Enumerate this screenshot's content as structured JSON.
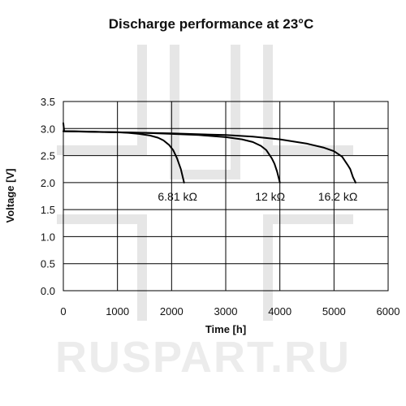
{
  "watermark": {
    "text": "RUSPART.RU"
  },
  "chart_data": {
    "type": "line",
    "title": "Discharge performance at 23°C",
    "xlabel": "Time [h]",
    "ylabel": "Voltage [V]",
    "xlim": [
      0,
      6000
    ],
    "ylim": [
      0,
      3.5
    ],
    "xticks": [
      0,
      1000,
      2000,
      3000,
      4000,
      5000,
      6000
    ],
    "yticks": [
      0.0,
      0.5,
      1.0,
      1.5,
      2.0,
      2.5,
      3.0,
      3.5
    ],
    "xtick_labels": [
      "0",
      "1000",
      "2000",
      "3000",
      "4000",
      "5000",
      "6000"
    ],
    "ytick_labels": [
      "0.0",
      "0.5",
      "1.0",
      "1.5",
      "2.0",
      "2.5",
      "3.0",
      "3.5"
    ],
    "grid": true,
    "legend": "none",
    "series": [
      {
        "name": "6.81 kΩ",
        "x": [
          0,
          15,
          200,
          600,
          1000,
          1200,
          1400,
          1600,
          1750,
          1850,
          1950,
          2030,
          2100,
          2170,
          2230
        ],
        "y": [
          3.1,
          2.95,
          2.95,
          2.94,
          2.93,
          2.92,
          2.9,
          2.87,
          2.83,
          2.78,
          2.7,
          2.6,
          2.45,
          2.25,
          2.0
        ]
      },
      {
        "name": "12 kΩ",
        "x": [
          0,
          500,
          1000,
          1500,
          2000,
          2500,
          3000,
          3300,
          3500,
          3650,
          3750,
          3850,
          3900,
          3950,
          4000
        ],
        "y": [
          2.95,
          2.94,
          2.93,
          2.92,
          2.9,
          2.88,
          2.84,
          2.8,
          2.75,
          2.68,
          2.6,
          2.45,
          2.35,
          2.2,
          2.0
        ]
      },
      {
        "name": "16.2 kΩ",
        "x": [
          0,
          1000,
          2000,
          3000,
          3500,
          4000,
          4500,
          4800,
          5000,
          5150,
          5250,
          5300,
          5350,
          5400
        ],
        "y": [
          2.95,
          2.93,
          2.91,
          2.88,
          2.85,
          2.8,
          2.72,
          2.65,
          2.58,
          2.48,
          2.33,
          2.25,
          2.1,
          2.0
        ]
      }
    ],
    "annotations": [
      "6.81 kΩ",
      "12 kΩ",
      "16.2 kΩ"
    ]
  }
}
